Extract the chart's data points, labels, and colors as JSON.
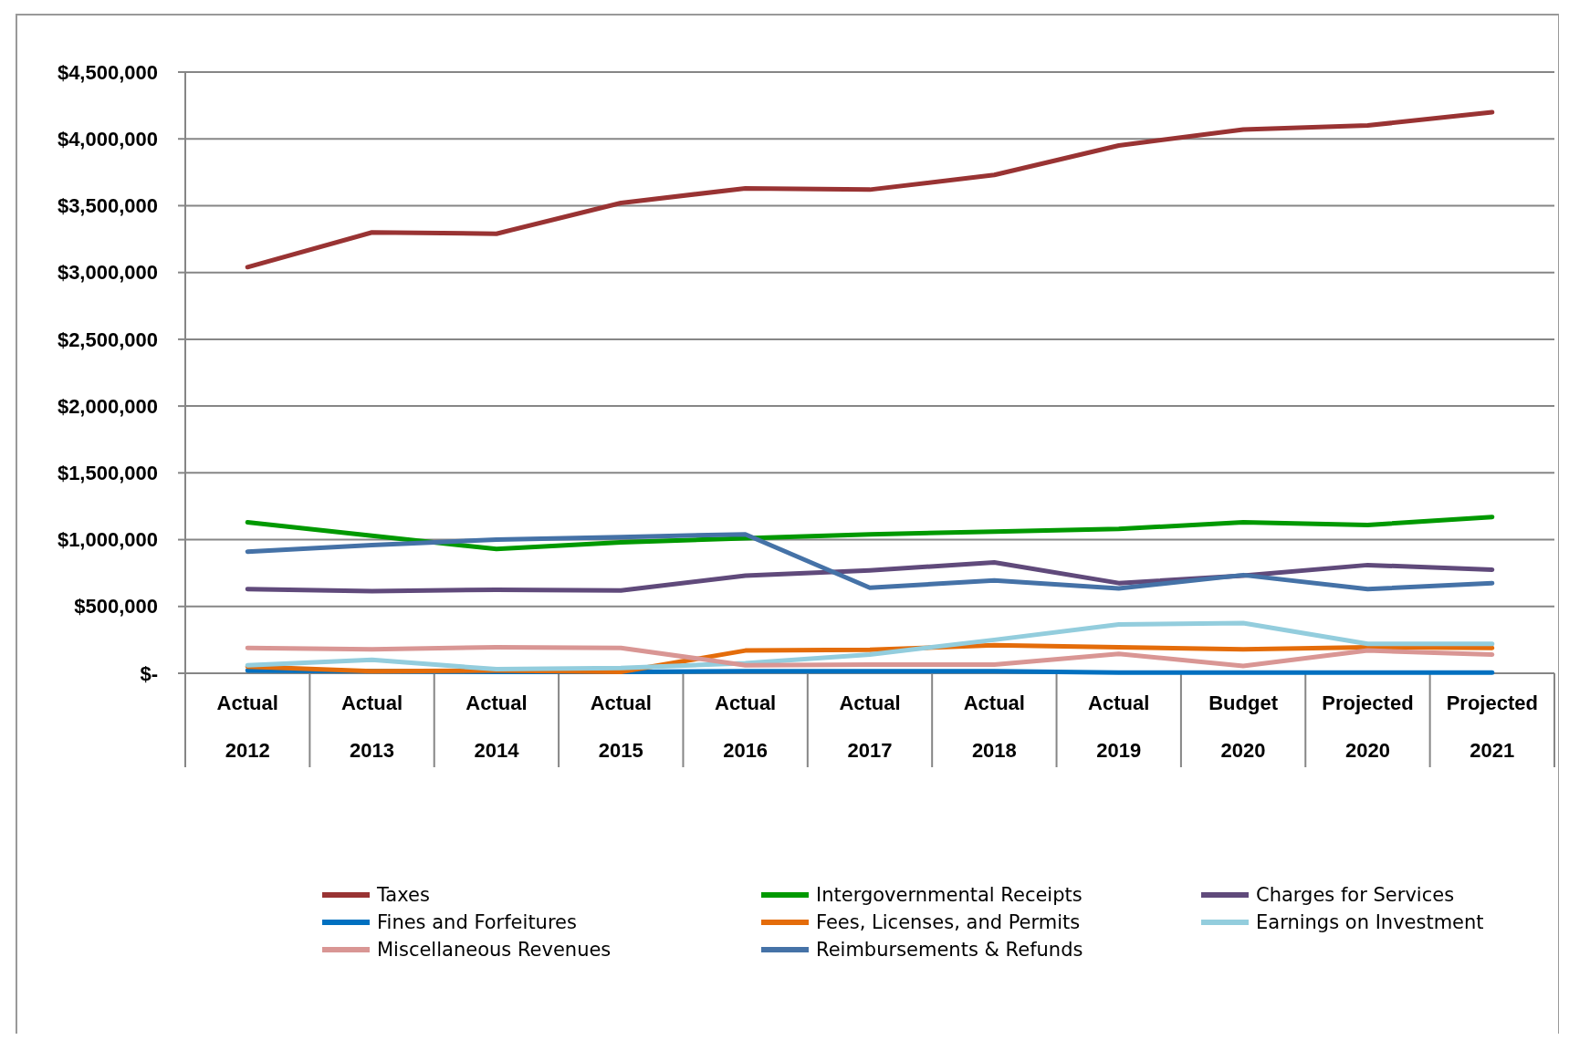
{
  "chart_data": {
    "type": "line",
    "categories": [
      "Actual 2012",
      "Actual 2013",
      "Actual 2014",
      "Actual 2015",
      "Actual 2016",
      "Actual 2017",
      "Actual 2018",
      "Actual 2019",
      "Budget 2020",
      "Projected 2020",
      "Projected 2021"
    ],
    "series": [
      {
        "name": "Taxes",
        "color": "#993333",
        "values": [
          3040000,
          3300000,
          3290000,
          3520000,
          3630000,
          3620000,
          3730000,
          3950000,
          4070000,
          4100000,
          4200000
        ]
      },
      {
        "name": "Intergovernmental Receipts",
        "color": "#009900",
        "values": [
          1130000,
          1030000,
          930000,
          980000,
          1010000,
          1040000,
          1060000,
          1080000,
          1130000,
          1110000,
          1170000
        ]
      },
      {
        "name": "Charges for Services",
        "color": "#604a7b",
        "values": [
          630000,
          615000,
          625000,
          620000,
          730000,
          770000,
          830000,
          675000,
          730000,
          810000,
          775000
        ]
      },
      {
        "name": "Fines and Forfeitures",
        "color": "#0070c0",
        "values": [
          20000,
          15000,
          10000,
          10000,
          15000,
          15000,
          15000,
          5000,
          5000,
          5000,
          5000
        ]
      },
      {
        "name": "Fees, Licenses, and Permits",
        "color": "#e46c0a",
        "values": [
          50000,
          15000,
          20000,
          10000,
          170000,
          175000,
          210000,
          195000,
          180000,
          195000,
          190000
        ]
      },
      {
        "name": "Earnings on Investment",
        "color": "#93cddd",
        "values": [
          60000,
          100000,
          30000,
          40000,
          75000,
          140000,
          250000,
          365000,
          375000,
          220000,
          220000
        ]
      },
      {
        "name": "Miscellaneous Revenues",
        "color": "#d99694",
        "values": [
          190000,
          180000,
          195000,
          190000,
          60000,
          65000,
          65000,
          145000,
          55000,
          170000,
          140000
        ]
      },
      {
        "name": "Reimbursements & Refunds",
        "color": "#4572a7",
        "values": [
          910000,
          960000,
          1000000,
          1020000,
          1040000,
          640000,
          695000,
          635000,
          735000,
          630000,
          675000
        ]
      }
    ],
    "ylim": [
      0,
      4500000
    ],
    "yticks": [
      {
        "value": 0,
        "label": "$-"
      },
      {
        "value": 500000,
        "label": "$500,000"
      },
      {
        "value": 1000000,
        "label": "$1,000,000"
      },
      {
        "value": 1500000,
        "label": "$1,500,000"
      },
      {
        "value": 2000000,
        "label": "$2,000,000"
      },
      {
        "value": 2500000,
        "label": "$2,500,000"
      },
      {
        "value": 3000000,
        "label": "$3,000,000"
      },
      {
        "value": 3500000,
        "label": "$3,500,000"
      },
      {
        "value": 4000000,
        "label": "$4,000,000"
      },
      {
        "value": 4500000,
        "label": "$4,500,000"
      }
    ],
    "grid": "y",
    "legend": "bottom",
    "marker": "none",
    "line_style": "solid"
  }
}
